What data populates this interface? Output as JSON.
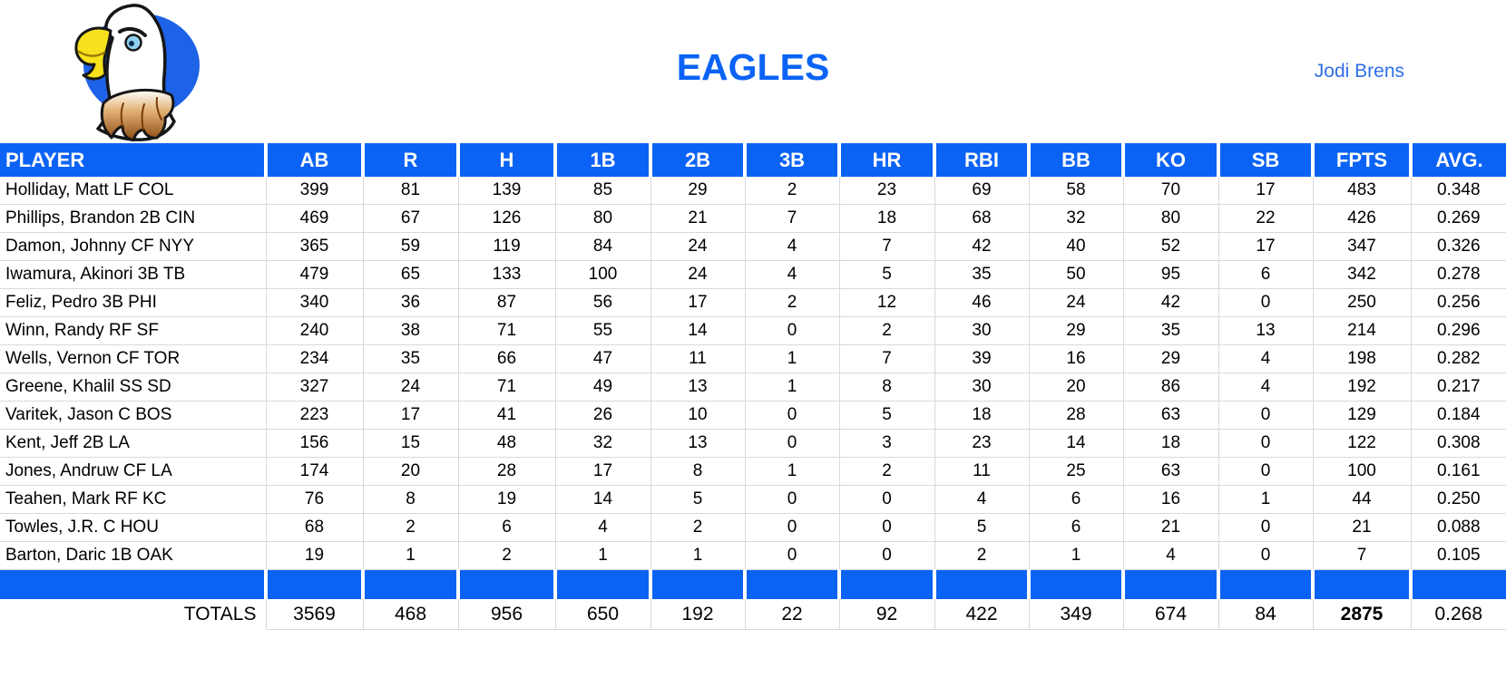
{
  "header": {
    "title": "EAGLES",
    "owner": "Jodi Brens"
  },
  "colors": {
    "accent_blue": "#0b63f6",
    "grid_line": "#d9d9d9",
    "title_blue": "#0b63f6",
    "owner_blue": "#2f6fe8"
  },
  "logo": {
    "description": "cartoon bald eagle head on blue oval"
  },
  "table": {
    "columns": [
      "PLAYER",
      "AB",
      "R",
      "H",
      "1B",
      "2B",
      "3B",
      "HR",
      "RBI",
      "BB",
      "KO",
      "SB",
      "FPTS",
      "AVG."
    ],
    "players": [
      {
        "name": "Holliday, Matt LF COL",
        "stats": [
          "399",
          "81",
          "139",
          "85",
          "29",
          "2",
          "23",
          "69",
          "58",
          "70",
          "17",
          "483",
          "0.348"
        ]
      },
      {
        "name": "Phillips, Brandon 2B CIN",
        "stats": [
          "469",
          "67",
          "126",
          "80",
          "21",
          "7",
          "18",
          "68",
          "32",
          "80",
          "22",
          "426",
          "0.269"
        ]
      },
      {
        "name": "Damon, Johnny CF NYY",
        "stats": [
          "365",
          "59",
          "119",
          "84",
          "24",
          "4",
          "7",
          "42",
          "40",
          "52",
          "17",
          "347",
          "0.326"
        ]
      },
      {
        "name": "Iwamura, Akinori 3B TB",
        "stats": [
          "479",
          "65",
          "133",
          "100",
          "24",
          "4",
          "5",
          "35",
          "50",
          "95",
          "6",
          "342",
          "0.278"
        ]
      },
      {
        "name": "Feliz, Pedro 3B PHI",
        "stats": [
          "340",
          "36",
          "87",
          "56",
          "17",
          "2",
          "12",
          "46",
          "24",
          "42",
          "0",
          "250",
          "0.256"
        ]
      },
      {
        "name": "Winn, Randy RF SF",
        "stats": [
          "240",
          "38",
          "71",
          "55",
          "14",
          "0",
          "2",
          "30",
          "29",
          "35",
          "13",
          "214",
          "0.296"
        ]
      },
      {
        "name": "Wells, Vernon CF TOR",
        "stats": [
          "234",
          "35",
          "66",
          "47",
          "11",
          "1",
          "7",
          "39",
          "16",
          "29",
          "4",
          "198",
          "0.282"
        ]
      },
      {
        "name": "Greene, Khalil SS SD",
        "stats": [
          "327",
          "24",
          "71",
          "49",
          "13",
          "1",
          "8",
          "30",
          "20",
          "86",
          "4",
          "192",
          "0.217"
        ]
      },
      {
        "name": "Varitek, Jason C BOS",
        "stats": [
          "223",
          "17",
          "41",
          "26",
          "10",
          "0",
          "5",
          "18",
          "28",
          "63",
          "0",
          "129",
          "0.184"
        ]
      },
      {
        "name": "Kent, Jeff 2B LA",
        "stats": [
          "156",
          "15",
          "48",
          "32",
          "13",
          "0",
          "3",
          "23",
          "14",
          "18",
          "0",
          "122",
          "0.308"
        ]
      },
      {
        "name": "Jones, Andruw CF LA",
        "stats": [
          "174",
          "20",
          "28",
          "17",
          "8",
          "1",
          "2",
          "11",
          "25",
          "63",
          "0",
          "100",
          "0.161"
        ]
      },
      {
        "name": "Teahen, Mark RF KC",
        "stats": [
          "76",
          "8",
          "19",
          "14",
          "5",
          "0",
          "0",
          "4",
          "6",
          "16",
          "1",
          "44",
          "0.250"
        ]
      },
      {
        "name": "Towles, J.R. C HOU",
        "stats": [
          "68",
          "2",
          "6",
          "4",
          "2",
          "0",
          "0",
          "5",
          "6",
          "21",
          "0",
          "21",
          "0.088"
        ]
      },
      {
        "name": "Barton, Daric 1B OAK",
        "stats": [
          "19",
          "1",
          "2",
          "1",
          "1",
          "0",
          "0",
          "2",
          "1",
          "4",
          "0",
          "7",
          "0.105"
        ]
      }
    ],
    "totals_label": "TOTALS",
    "totals": [
      "3569",
      "468",
      "956",
      "650",
      "192",
      "22",
      "92",
      "422",
      "349",
      "674",
      "84",
      "2875",
      "0.268"
    ],
    "totals_bold_column": "FPTS"
  }
}
